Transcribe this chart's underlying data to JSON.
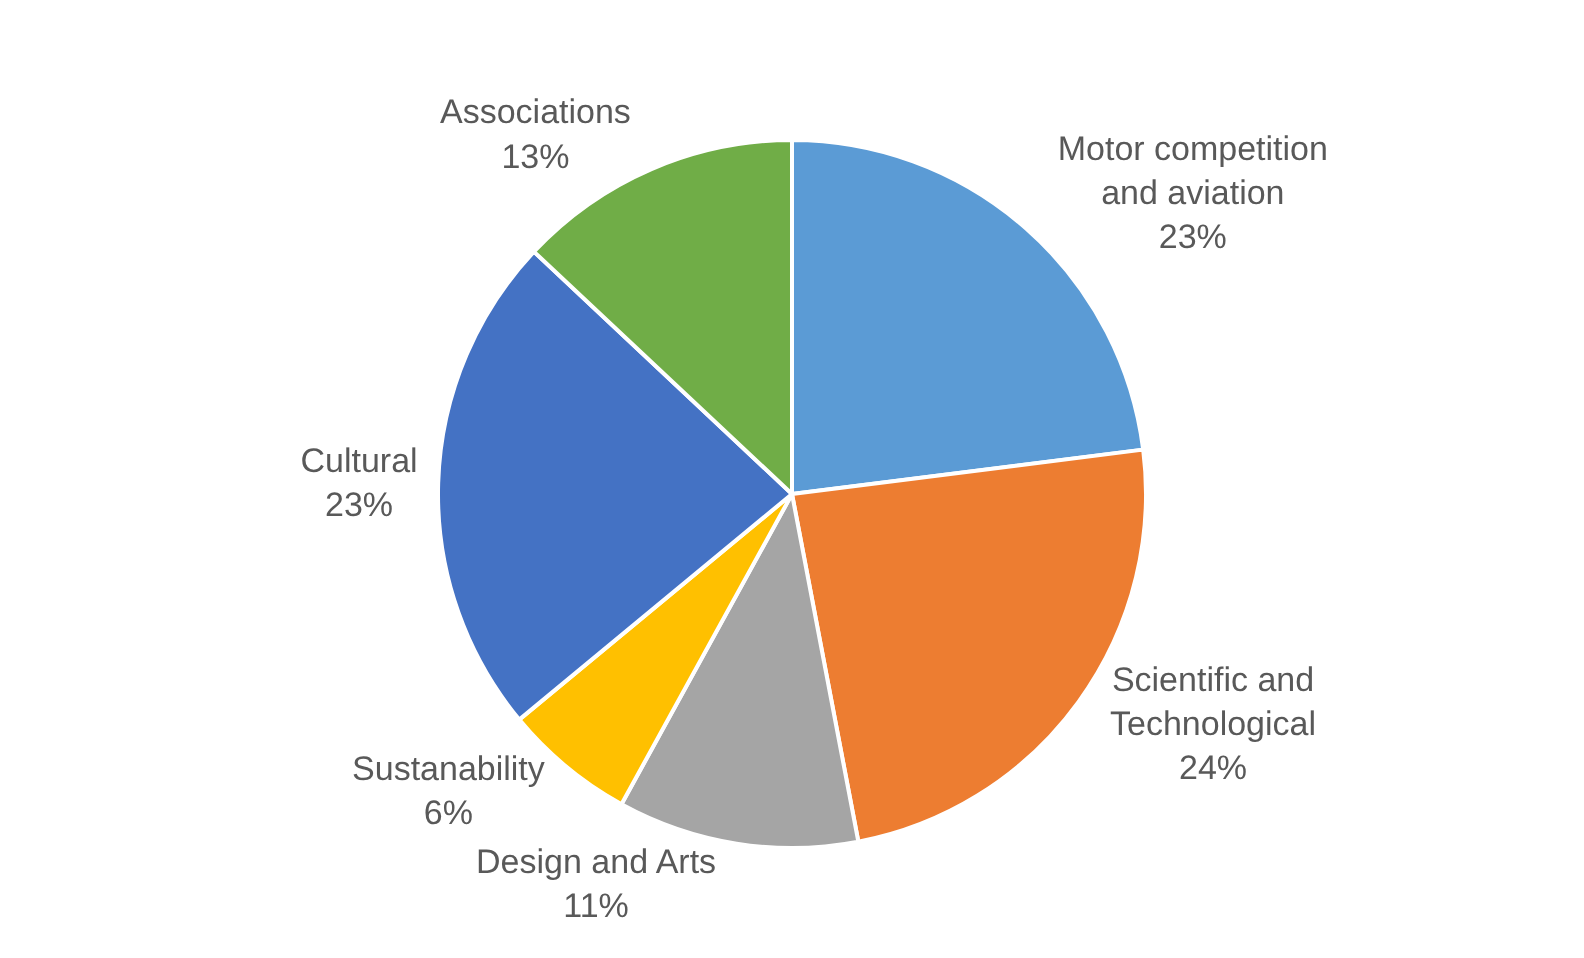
{
  "chart_data": {
    "type": "pie",
    "categories": [
      "Motor competition and aviation",
      "Scientific and Technological",
      "Design and Arts",
      "Sustanability",
      "Cultural",
      "Associations"
    ],
    "values": [
      23,
      24,
      11,
      6,
      23,
      13
    ],
    "value_labels": [
      "23%",
      "24%",
      "11%",
      "6%",
      "23%",
      "13%"
    ],
    "colors": [
      "#5b9bd5",
      "#ed7d31",
      "#a5a5a5",
      "#ffc000",
      "#4472c4",
      "#70ad47"
    ],
    "legend": false
  }
}
